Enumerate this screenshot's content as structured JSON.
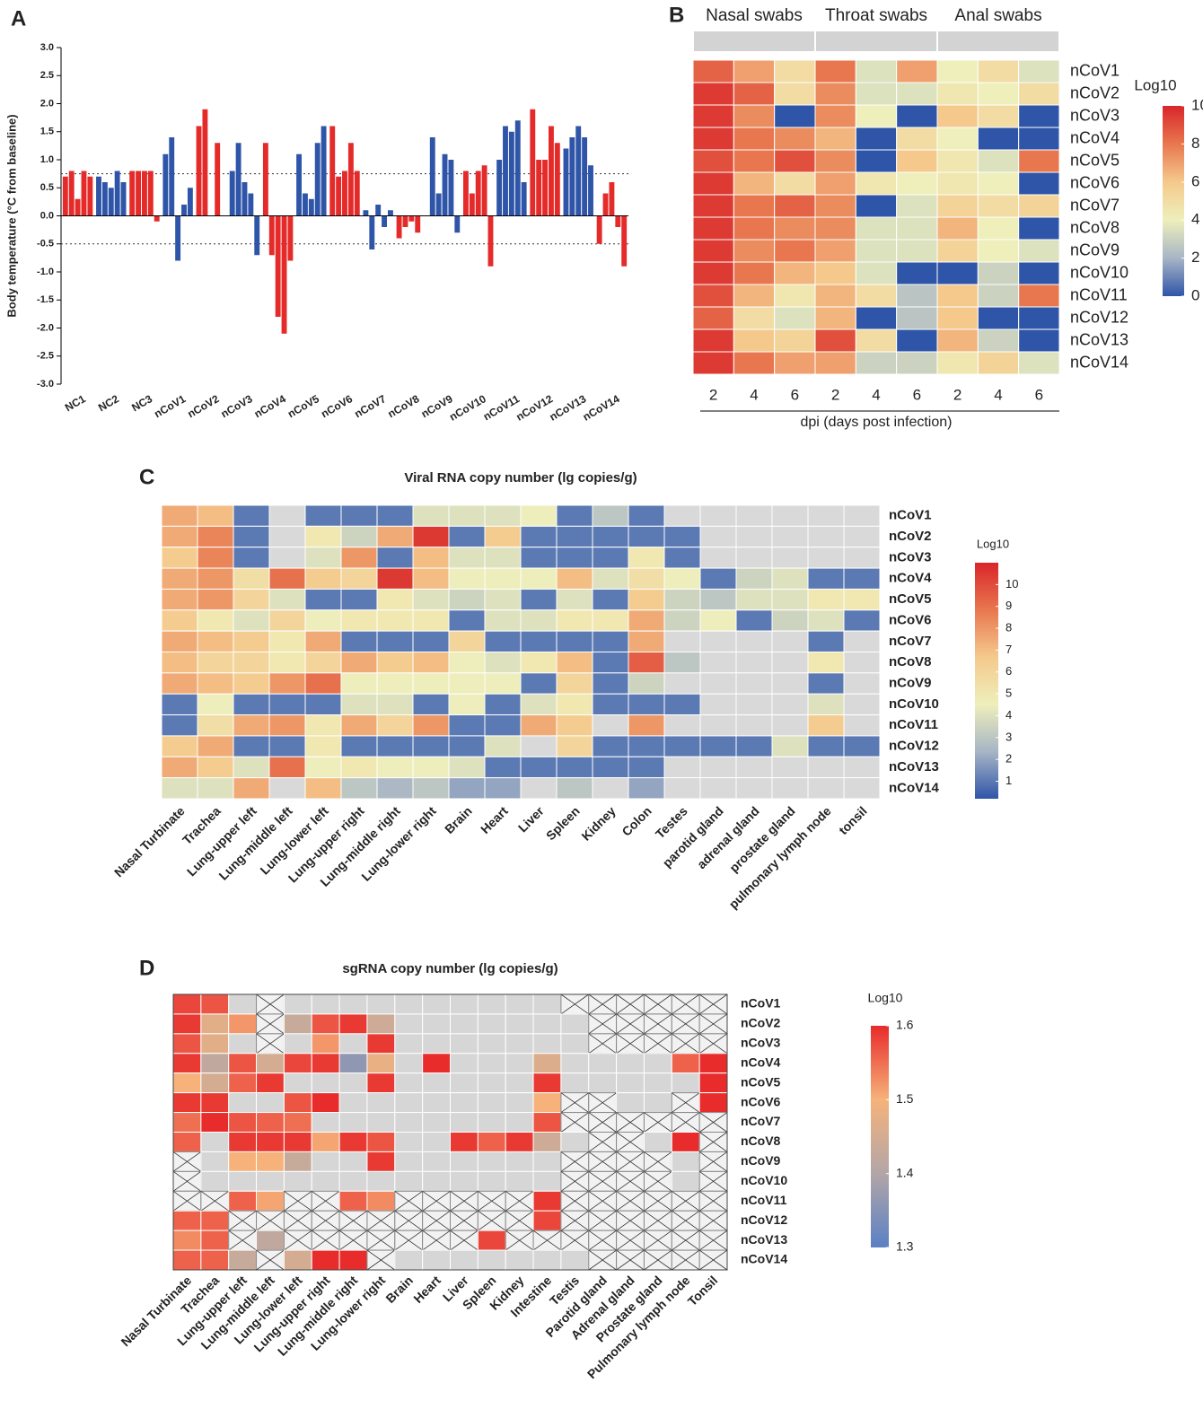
{
  "chart_data": [
    {
      "type": "bar",
      "label": "A",
      "ylabel": "Body temperature (°C from baseline)",
      "categories": [
        "NC1",
        "NC2",
        "NC3",
        "nCoV1",
        "nCoV2",
        "nCoV3",
        "nCoV4",
        "nCoV5",
        "nCoV6",
        "nCoV7",
        "nCoV8",
        "nCoV9",
        "nCoV10",
        "nCoV11",
        "nCoV12",
        "nCoV13",
        "nCoV14"
      ],
      "values": [
        [
          0.7,
          0.8,
          0.3,
          0.8,
          0.7
        ],
        [
          0.7,
          0.6,
          0.5,
          0.8,
          0.6
        ],
        [
          0.8,
          0.8,
          0.8,
          0.8,
          -0.1
        ],
        [
          1.1,
          1.4,
          -0.8,
          0.2,
          0.5
        ],
        [
          1.6,
          1.9,
          0,
          1.3,
          0
        ],
        [
          0.8,
          1.3,
          0.6,
          0.4,
          -0.7
        ],
        [
          1.3,
          -0.7,
          -1.8,
          -2.1,
          -0.8
        ],
        [
          1.1,
          0.4,
          0.3,
          1.3,
          1.6
        ],
        [
          1.6,
          0.7,
          0.8,
          1.3,
          0.8
        ],
        [
          0.1,
          -0.6,
          0.2,
          -0.2,
          0.1
        ],
        [
          -0.4,
          -0.2,
          -0.1,
          -0.3,
          0
        ],
        [
          1.4,
          0.4,
          1.1,
          1.0,
          -0.3
        ],
        [
          0.8,
          0.4,
          0.8,
          0.9,
          -0.9
        ],
        [
          1.0,
          1.6,
          1.5,
          1.7,
          0.6
        ],
        [
          1.9,
          1.0,
          1.0,
          1.6,
          1.3
        ],
        [
          1.2,
          1.4,
          1.6,
          1.4,
          0.9
        ],
        [
          -0.5,
          0.4,
          0.6,
          -0.2,
          -0.9
        ]
      ],
      "colors": [
        "#e52a2a",
        "#2f55a8",
        "#e52a2a",
        "#2f55a8",
        "#e52a2a",
        "#2f55a8",
        "#e52a2a",
        "#2f55a8",
        "#e52a2a",
        "#2f55a8",
        "#e52a2a",
        "#2f55a8",
        "#e52a2a",
        "#2f55a8",
        "#e52a2a",
        "#2f55a8",
        "#e52a2a"
      ],
      "ylim": [
        -3,
        3
      ],
      "yticks": [
        {
          "value": 3,
          "label": "3.0"
        },
        2.5,
        {
          "value": 2,
          "label": "2.0"
        },
        1.5,
        {
          "value": 1,
          "label": "1.0"
        },
        0.5,
        {
          "value": 0,
          "label": "0.0"
        },
        -0.5,
        {
          "value": -1,
          "label": "-1.0"
        },
        -1.5,
        {
          "value": -2,
          "label": "-2.0"
        },
        -2.5,
        {
          "value": -3,
          "label": "-3.0"
        }
      ],
      "reference_lines": [
        0.75,
        -0.5
      ]
    },
    {
      "type": "heatmap",
      "label": "B",
      "column_groups": [
        "Nasal swabs",
        "Throat swabs",
        "Anal swabs"
      ],
      "columns": [
        2,
        4,
        6,
        2,
        4,
        6,
        2,
        4,
        6
      ],
      "xlabel": "dpi (days post infection)",
      "rows": [
        "nCoV1",
        "nCoV2",
        "nCoV3",
        "nCoV4",
        "nCoV5",
        "nCoV6",
        "nCoV7",
        "nCoV8",
        "nCoV9",
        "nCoV10",
        "nCoV11",
        "nCoV12",
        "nCoV13",
        "nCoV14"
      ],
      "values": [
        [
          8.5,
          7,
          5,
          8,
          3.5,
          7,
          4,
          5,
          3.5
        ],
        [
          9.5,
          8.5,
          5,
          7.5,
          3.5,
          3.5,
          4.5,
          4,
          5
        ],
        [
          9.5,
          7.5,
          0,
          7.5,
          4,
          0,
          6,
          5,
          0
        ],
        [
          9.5,
          8,
          7.5,
          6.5,
          0,
          5,
          4,
          0,
          0
        ],
        [
          9,
          8,
          9,
          7.5,
          0,
          6,
          4.5,
          3.5,
          8
        ],
        [
          9.5,
          6.5,
          5,
          7,
          4.5,
          4,
          4.5,
          4,
          0
        ],
        [
          9.5,
          8,
          8.5,
          7.5,
          0,
          3.5,
          5.5,
          5,
          5.5
        ],
        [
          9.5,
          8,
          7.5,
          7.5,
          3.5,
          3.5,
          6.5,
          4,
          0
        ],
        [
          9.5,
          7.5,
          8,
          7,
          3.5,
          3.5,
          5.5,
          4,
          3.5
        ],
        [
          9.5,
          8,
          6.5,
          6,
          3.5,
          0,
          0,
          3,
          0
        ],
        [
          9,
          6.5,
          4.5,
          6.5,
          5,
          2.5,
          6,
          3,
          8
        ],
        [
          8.5,
          5,
          3.5,
          6.5,
          0,
          2.5,
          6,
          0,
          0
        ],
        [
          9.5,
          6,
          5.5,
          9,
          5,
          0,
          6.5,
          3,
          0
        ],
        [
          9.5,
          8,
          7,
          7,
          3,
          3,
          4.5,
          5.5,
          3.5
        ]
      ],
      "colorbar_title": "Log10",
      "clim": [
        0,
        10
      ],
      "cticks": [
        0,
        2,
        4,
        6,
        8,
        10
      ],
      "colorscale": [
        "#2f55a8",
        "#a7b5c5",
        "#eeefbb",
        "#f5c98c",
        "#e8774f",
        "#d9262a"
      ]
    },
    {
      "type": "heatmap",
      "label": "C",
      "title": "Viral RNA copy number (lg copies/g)",
      "columns": [
        "Nasal Turbinate",
        "Trachea",
        "Lung-upper left",
        "Lung-middle left",
        "Lung-lower left",
        "Lung-upper right",
        "Lung-middle right",
        "Lung-lower right",
        "Brain",
        "Heart",
        "Liver",
        "Spleen",
        "Kidney",
        "Colon",
        "Testes",
        "parotid gland",
        "adrenal gland",
        "prostate gland",
        "pulmonary lymph node",
        "tonsil"
      ],
      "rows": [
        "nCoV1",
        "nCoV2",
        "nCoV3",
        "nCoV4",
        "nCoV5",
        "nCoV6",
        "nCoV7",
        "nCoV8",
        "nCoV9",
        "nCoV10",
        "nCoV11",
        "nCoV12",
        "nCoV13",
        "nCoV14"
      ],
      "values": [
        [
          7.5,
          7,
          1,
          null,
          1,
          1,
          1,
          4,
          4,
          4,
          4.5,
          1,
          3,
          1,
          null,
          null,
          null,
          null,
          null,
          null
        ],
        [
          7.5,
          8.5,
          1,
          null,
          5,
          3.5,
          7.5,
          10.5,
          1,
          6.5,
          1,
          1,
          1,
          1,
          1,
          null,
          null,
          null,
          null,
          null
        ],
        [
          6.5,
          8.5,
          1,
          null,
          4,
          8,
          1,
          7,
          4,
          4,
          1,
          1,
          1,
          5,
          1,
          null,
          null,
          null,
          null,
          null
        ],
        [
          7.5,
          8,
          5.5,
          9,
          6.5,
          6,
          10.5,
          7,
          4.5,
          4.5,
          4.5,
          7,
          4,
          5.5,
          4.5,
          1,
          3.5,
          4,
          1,
          1
        ],
        [
          7.5,
          8,
          6,
          4,
          1,
          1,
          5,
          4,
          3.5,
          4,
          1,
          4,
          1,
          6.5,
          3.5,
          3,
          4,
          4,
          5,
          5
        ],
        [
          6.5,
          5,
          4,
          6,
          4.5,
          5,
          5,
          5,
          1,
          4,
          4,
          5,
          5,
          7.5,
          3.5,
          4.5,
          1,
          3.5,
          4,
          1
        ],
        [
          7.5,
          7,
          6.5,
          5,
          7.5,
          1,
          1,
          1,
          6,
          1,
          1,
          1,
          1,
          7.5,
          null,
          null,
          null,
          null,
          1,
          null
        ],
        [
          7,
          6,
          6,
          5,
          6,
          7.5,
          6.5,
          7,
          4.5,
          4,
          5,
          7,
          1,
          9.5,
          3,
          null,
          null,
          null,
          5,
          null
        ],
        [
          7.5,
          7,
          6.5,
          8,
          9,
          4.5,
          4.5,
          4.5,
          4.5,
          4.5,
          1,
          6,
          1,
          3.5,
          null,
          null,
          null,
          null,
          1,
          null
        ],
        [
          1,
          4.5,
          1,
          1,
          1,
          4,
          4,
          1,
          4.5,
          1,
          4,
          5,
          1,
          1,
          1,
          null,
          null,
          null,
          4,
          null
        ],
        [
          1,
          5.5,
          7.5,
          8,
          5,
          7.5,
          6,
          8,
          1,
          1,
          7.5,
          6.5,
          null,
          8,
          null,
          null,
          null,
          null,
          6.5,
          null
        ],
        [
          6.5,
          7.5,
          1,
          1,
          5,
          1,
          1,
          1,
          1,
          4,
          null,
          6,
          1,
          1,
          1,
          1,
          1,
          4,
          1,
          1
        ],
        [
          7.5,
          6.5,
          4,
          9,
          4.5,
          5,
          4.5,
          4.5,
          4,
          1,
          1,
          1,
          1,
          1,
          null,
          null,
          null,
          null,
          null,
          null
        ],
        [
          4,
          4,
          7.5,
          null,
          7,
          3,
          2.5,
          3,
          2,
          2,
          null,
          3,
          null,
          2,
          null,
          null,
          null,
          null,
          null,
          null
        ]
      ],
      "colorbar_title": "Log10",
      "clim": [
        0.2,
        11
      ],
      "cticks": [
        1,
        2,
        3,
        4,
        5,
        6,
        7,
        8,
        9,
        10
      ],
      "colorscale": [
        "#2f55a8",
        "#a7b5c5",
        "#eeefbb",
        "#f5c98c",
        "#e8774f",
        "#d9262a"
      ],
      "missing_color": "#d9d9d9"
    },
    {
      "type": "heatmap",
      "label": "D",
      "title": "sgRNA copy number (lg copies/g)",
      "columns": [
        "Nasal Turbinate",
        "Trachea",
        "Lung-upper left",
        "Lung-middle left",
        "Lung-lower left",
        "Lung-upper right",
        "Lung-middle right",
        "Lung-lower right",
        "Brain",
        "Heart",
        "Liver",
        "Spleen",
        "Kidney",
        "Intestine",
        "Testis",
        "Parotid gland",
        "Adrenal gland",
        "Prostate gland",
        "Pulmonary lymph node",
        "Tonsil"
      ],
      "rows": [
        "nCoV1",
        "nCoV2",
        "nCoV3",
        "nCoV4",
        "nCoV5",
        "nCoV6",
        "nCoV7",
        "nCoV8",
        "nCoV9",
        "nCoV10",
        "nCoV11",
        "nCoV12",
        "nCoV13",
        "nCoV14"
      ],
      "values": [
        [
          1.58,
          1.57,
          null,
          false,
          null,
          null,
          null,
          null,
          null,
          null,
          null,
          null,
          null,
          null,
          false,
          false,
          false,
          false,
          false,
          false
        ],
        [
          1.59,
          1.47,
          1.52,
          false,
          1.43,
          1.57,
          1.59,
          1.44,
          null,
          null,
          null,
          null,
          null,
          null,
          null,
          false,
          false,
          false,
          false,
          false
        ],
        [
          1.57,
          1.47,
          null,
          false,
          null,
          1.52,
          null,
          1.59,
          null,
          null,
          null,
          null,
          null,
          null,
          null,
          false,
          false,
          false,
          false,
          false
        ],
        [
          1.59,
          1.42,
          1.57,
          1.45,
          1.58,
          1.59,
          1.36,
          1.48,
          null,
          1.6,
          null,
          null,
          null,
          1.46,
          null,
          null,
          null,
          null,
          1.56,
          1.6
        ],
        [
          1.5,
          1.45,
          1.56,
          1.59,
          null,
          null,
          null,
          1.59,
          null,
          null,
          null,
          null,
          null,
          1.59,
          null,
          null,
          null,
          null,
          null,
          1.6
        ],
        [
          1.59,
          1.59,
          null,
          null,
          1.57,
          1.6,
          null,
          null,
          null,
          null,
          null,
          null,
          null,
          1.5,
          false,
          false,
          null,
          null,
          false,
          1.6
        ],
        [
          1.55,
          1.6,
          1.57,
          1.56,
          1.55,
          null,
          null,
          null,
          null,
          null,
          null,
          null,
          null,
          1.57,
          false,
          false,
          false,
          false,
          false,
          false
        ],
        [
          1.56,
          null,
          1.59,
          1.59,
          1.59,
          1.51,
          1.59,
          1.57,
          null,
          null,
          1.59,
          1.56,
          1.59,
          1.44,
          null,
          false,
          false,
          null,
          1.6,
          false
        ],
        [
          false,
          null,
          1.5,
          1.5,
          1.43,
          null,
          null,
          1.59,
          null,
          null,
          null,
          null,
          null,
          null,
          false,
          false,
          false,
          false,
          null,
          false
        ],
        [
          false,
          null,
          null,
          null,
          null,
          null,
          null,
          null,
          null,
          null,
          null,
          null,
          null,
          null,
          false,
          false,
          false,
          false,
          null,
          false
        ],
        [
          false,
          false,
          1.56,
          1.51,
          false,
          false,
          1.56,
          1.53,
          false,
          false,
          false,
          false,
          false,
          1.59,
          false,
          false,
          false,
          false,
          false,
          false
        ],
        [
          1.56,
          1.56,
          false,
          false,
          false,
          false,
          false,
          false,
          false,
          false,
          false,
          false,
          false,
          1.58,
          false,
          false,
          false,
          false,
          false,
          false
        ],
        [
          1.53,
          1.56,
          false,
          1.42,
          false,
          false,
          false,
          false,
          false,
          false,
          false,
          1.58,
          false,
          false,
          false,
          false,
          false,
          false,
          false,
          false
        ],
        [
          1.56,
          1.56,
          1.43,
          false,
          1.45,
          1.6,
          1.6,
          false,
          null,
          null,
          null,
          null,
          null,
          null,
          null,
          false,
          false,
          false,
          false,
          false
        ]
      ],
      "colorbar_title": "Log10",
      "clim": [
        1.3,
        1.6
      ],
      "cticks": [
        1.3,
        1.4,
        1.5,
        1.6
      ],
      "colorscale": [
        "#5b80c4",
        "#b2a6a8",
        "#f6b27a",
        "#e82b2b"
      ],
      "missing_color": "#d6d6d6",
      "crossed_color": "#f2f2f2"
    }
  ]
}
